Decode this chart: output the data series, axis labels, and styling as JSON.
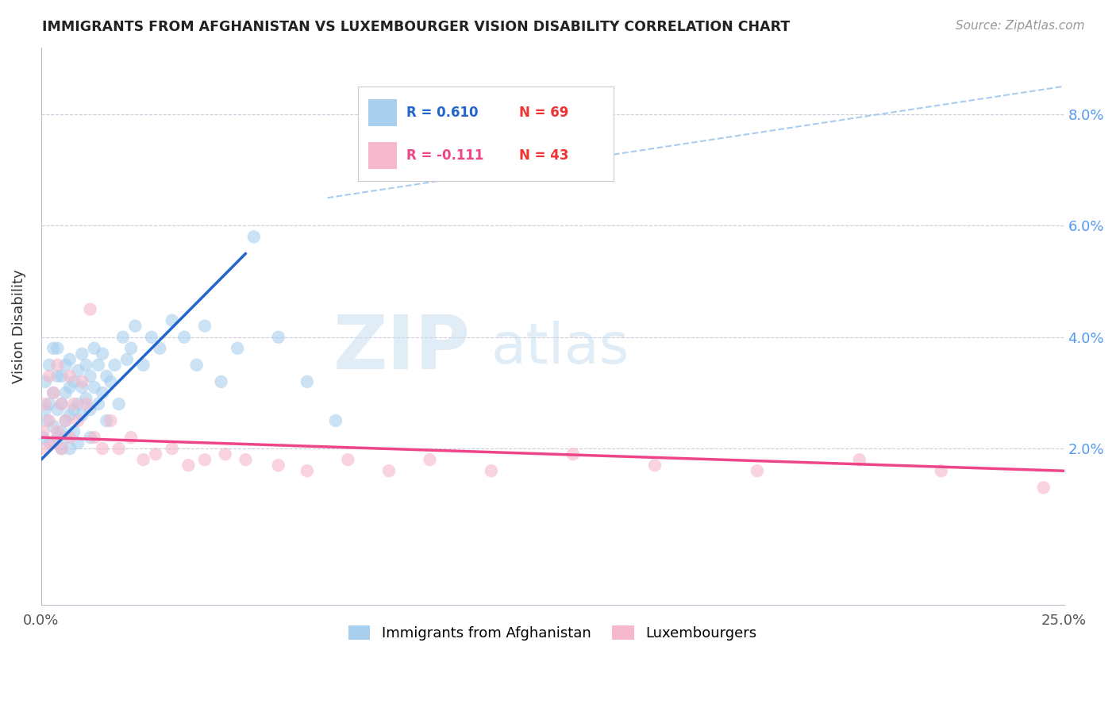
{
  "title": "IMMIGRANTS FROM AFGHANISTAN VS LUXEMBOURGER VISION DISABILITY CORRELATION CHART",
  "source": "Source: ZipAtlas.com",
  "ylabel": "Vision Disability",
  "y_ticks": [
    0.02,
    0.04,
    0.06,
    0.08
  ],
  "y_tick_labels": [
    "2.0%",
    "4.0%",
    "6.0%",
    "8.0%"
  ],
  "xlim": [
    0.0,
    0.25
  ],
  "ylim": [
    -0.008,
    0.092
  ],
  "legend_r1": "R = 0.610",
  "legend_n1": "N = 69",
  "legend_r2": "R = -0.111",
  "legend_n2": "N = 43",
  "color_blue": "#A8CFEE",
  "color_pink": "#F5B8CC",
  "line_blue": "#2266CC",
  "line_pink": "#EE4488",
  "dashed_line_color": "#AACCEE",
  "watermark_zip": "ZIP",
  "watermark_atlas": "atlas",
  "blue_scatter_x": [
    0.0005,
    0.001,
    0.001,
    0.0015,
    0.002,
    0.002,
    0.002,
    0.003,
    0.003,
    0.003,
    0.004,
    0.004,
    0.004,
    0.004,
    0.005,
    0.005,
    0.005,
    0.005,
    0.006,
    0.006,
    0.006,
    0.006,
    0.007,
    0.007,
    0.007,
    0.007,
    0.008,
    0.008,
    0.008,
    0.009,
    0.009,
    0.009,
    0.01,
    0.01,
    0.01,
    0.011,
    0.011,
    0.012,
    0.012,
    0.012,
    0.013,
    0.013,
    0.014,
    0.014,
    0.015,
    0.015,
    0.016,
    0.016,
    0.017,
    0.018,
    0.019,
    0.02,
    0.021,
    0.022,
    0.023,
    0.025,
    0.027,
    0.029,
    0.032,
    0.035,
    0.038,
    0.04,
    0.044,
    0.048,
    0.052,
    0.058,
    0.065,
    0.072,
    0.08
  ],
  "blue_scatter_y": [
    0.022,
    0.027,
    0.032,
    0.025,
    0.021,
    0.028,
    0.035,
    0.024,
    0.03,
    0.038,
    0.022,
    0.027,
    0.033,
    0.038,
    0.023,
    0.028,
    0.033,
    0.02,
    0.025,
    0.03,
    0.035,
    0.022,
    0.026,
    0.031,
    0.036,
    0.02,
    0.027,
    0.032,
    0.023,
    0.028,
    0.034,
    0.021,
    0.026,
    0.031,
    0.037,
    0.029,
    0.035,
    0.027,
    0.033,
    0.022,
    0.031,
    0.038,
    0.028,
    0.035,
    0.03,
    0.037,
    0.025,
    0.033,
    0.032,
    0.035,
    0.028,
    0.04,
    0.036,
    0.038,
    0.042,
    0.035,
    0.04,
    0.038,
    0.043,
    0.04,
    0.035,
    0.042,
    0.032,
    0.038,
    0.058,
    0.04,
    0.032,
    0.025,
    0.073
  ],
  "pink_scatter_x": [
    0.0005,
    0.001,
    0.001,
    0.002,
    0.002,
    0.003,
    0.003,
    0.004,
    0.004,
    0.005,
    0.005,
    0.006,
    0.007,
    0.007,
    0.008,
    0.009,
    0.01,
    0.011,
    0.012,
    0.013,
    0.015,
    0.017,
    0.019,
    0.022,
    0.025,
    0.028,
    0.032,
    0.036,
    0.04,
    0.045,
    0.05,
    0.058,
    0.065,
    0.075,
    0.085,
    0.095,
    0.11,
    0.13,
    0.15,
    0.175,
    0.2,
    0.22,
    0.245
  ],
  "pink_scatter_y": [
    0.023,
    0.028,
    0.02,
    0.025,
    0.033,
    0.021,
    0.03,
    0.023,
    0.035,
    0.02,
    0.028,
    0.025,
    0.033,
    0.022,
    0.028,
    0.025,
    0.032,
    0.028,
    0.045,
    0.022,
    0.02,
    0.025,
    0.02,
    0.022,
    0.018,
    0.019,
    0.02,
    0.017,
    0.018,
    0.019,
    0.018,
    0.017,
    0.016,
    0.018,
    0.016,
    0.018,
    0.016,
    0.019,
    0.017,
    0.016,
    0.018,
    0.016,
    0.013
  ],
  "blue_line_x0": 0.0,
  "blue_line_y0": 0.018,
  "blue_line_x1": 0.05,
  "blue_line_y1": 0.055,
  "pink_line_x0": 0.0,
  "pink_line_y0": 0.022,
  "pink_line_x1": 0.25,
  "pink_line_y1": 0.016,
  "dash_line_x0": 0.07,
  "dash_line_y0": 0.065,
  "dash_line_x1": 0.25,
  "dash_line_y1": 0.085
}
